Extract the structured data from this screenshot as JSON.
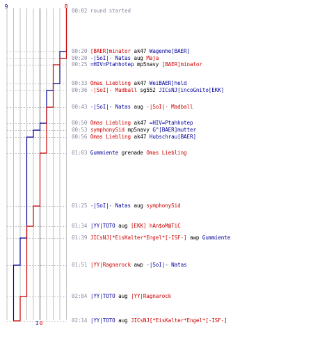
{
  "scores": {
    "blue_start": "9",
    "red_start": "8",
    "blue_end": "1",
    "red_end": "0"
  },
  "colors": {
    "team_red": "#cc0000",
    "team_blue": "#000099",
    "time": "#8a8aa4",
    "grid": "#c0c0c0",
    "grid_dark": "#606060"
  },
  "events": [
    {
      "time": "00:02",
      "note": "round started"
    },
    {
      "time": "00:20",
      "killer": "[BAER]minator",
      "killer_team": "red",
      "weapon": "ak47",
      "victim": "Wagenhe[BAER]",
      "victim_team": "blue"
    },
    {
      "time": "00:20",
      "killer": "-|SoI|- Natas",
      "killer_team": "blue",
      "weapon": "aug",
      "victim": "Maja",
      "victim_team": "red"
    },
    {
      "time": "00:25",
      "killer": "=HIV=Ptahhotep",
      "killer_team": "blue",
      "weapon": "mp5navy",
      "victim": "[BAER]minator",
      "victim_team": "red"
    },
    {
      "time": "00:33",
      "killer": "Omas Liebling",
      "killer_team": "red",
      "weapon": "ak47",
      "victim": "WeiBAER]held",
      "victim_team": "blue"
    },
    {
      "time": "00:36",
      "killer": "-|SoI|- Madball",
      "killer_team": "red",
      "weapon": "sg552",
      "victim": "JICsNJ[incoGnito[EKK]",
      "victim_team": "blue"
    },
    {
      "time": "00:43",
      "killer": "-|SoI|- Natas",
      "killer_team": "blue",
      "weapon": "aug",
      "victim": "-|SoI|- Madball",
      "victim_team": "red"
    },
    {
      "time": "00:50",
      "killer": "Omas Liebling",
      "killer_team": "red",
      "weapon": "ak47",
      "victim": "=HIV=Ptahhotep",
      "victim_team": "blue"
    },
    {
      "time": "00:53",
      "killer": "symphonySid",
      "killer_team": "red",
      "weapon": "mp5navy",
      "victim": "G^[BAER]mutter",
      "victim_team": "blue"
    },
    {
      "time": "00:56",
      "killer": "Omas Liebling",
      "killer_team": "red",
      "weapon": "ak47",
      "victim": "Hubschrau[BAER]",
      "victim_team": "blue"
    },
    {
      "time": "01:03",
      "killer": "Gummiente",
      "killer_team": "blue",
      "weapon": "grenade",
      "victim": "Omas Liebling",
      "victim_team": "red"
    },
    {
      "time": "01:25",
      "killer": "-|SoI|- Natas",
      "killer_team": "blue",
      "weapon": "aug",
      "victim": "symphonySid",
      "victim_team": "red"
    },
    {
      "time": "01:34",
      "killer": "|YY|TOTO",
      "killer_team": "blue",
      "weapon": "aug",
      "victim": "[EKK] hAn$oM@TiC",
      "victim_team": "red"
    },
    {
      "time": "01:39",
      "killer": "JICsNJ[*EisKalter*Engel*[-ISF-]",
      "killer_team": "red",
      "weapon": "awp",
      "victim": "Gummiente",
      "victim_team": "blue"
    },
    {
      "time": "01:51",
      "killer": "|YY|Ragnarock",
      "killer_team": "red",
      "weapon": "awp",
      "victim": "-|SoI|- Natas",
      "victim_team": "blue"
    },
    {
      "time": "02:04",
      "killer": "|YY|TOTO",
      "killer_team": "blue",
      "weapon": "aug",
      "victim": "|YY|Ragnarock",
      "victim_team": "red"
    },
    {
      "time": "02:14",
      "killer": "|YY|TOTO",
      "killer_team": "blue",
      "weapon": "aug",
      "victim": "JICsNJ[*EisKalter*Engel*[-ISF-]",
      "victim_team": "red"
    }
  ]
}
